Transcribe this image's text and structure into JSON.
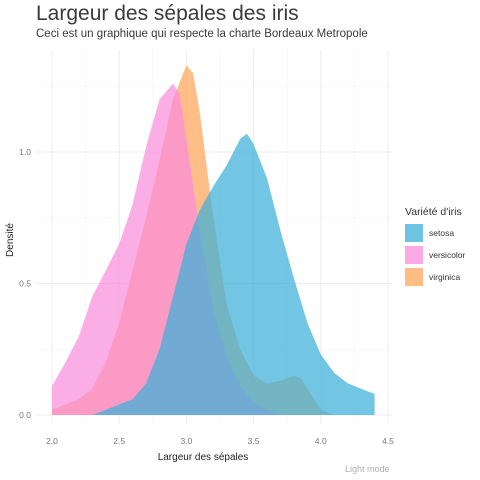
{
  "chart_data": {
    "type": "area",
    "title": "Largeur des sépales des iris",
    "subtitle": "Ceci est un graphique qui respecte la charte Bordeaux Metropole",
    "xlabel": "Largeur des sépales",
    "ylabel": "Densité",
    "caption": "Light mode",
    "xlim": [
      2.0,
      4.5
    ],
    "ylim": [
      0,
      1.3
    ],
    "x_ticks": [
      "2.0",
      "2.5",
      "3.0",
      "3.5",
      "4.0",
      "4.5"
    ],
    "y_ticks": [
      "0.0",
      "0.5",
      "1.0"
    ],
    "grid": true,
    "legend": {
      "title": "Variété d'iris",
      "position": "right"
    },
    "series": [
      {
        "name": "setosa",
        "color": "#3cb0d8",
        "points": [
          [
            2.3,
            0.0
          ],
          [
            2.4,
            0.02
          ],
          [
            2.5,
            0.04
          ],
          [
            2.6,
            0.06
          ],
          [
            2.7,
            0.12
          ],
          [
            2.8,
            0.25
          ],
          [
            2.9,
            0.45
          ],
          [
            3.0,
            0.65
          ],
          [
            3.1,
            0.78
          ],
          [
            3.2,
            0.87
          ],
          [
            3.3,
            0.95
          ],
          [
            3.4,
            1.05
          ],
          [
            3.45,
            1.07
          ],
          [
            3.5,
            1.03
          ],
          [
            3.6,
            0.9
          ],
          [
            3.7,
            0.7
          ],
          [
            3.8,
            0.52
          ],
          [
            3.9,
            0.35
          ],
          [
            4.0,
            0.23
          ],
          [
            4.1,
            0.16
          ],
          [
            4.2,
            0.12
          ],
          [
            4.3,
            0.1
          ],
          [
            4.4,
            0.08
          ],
          [
            4.4,
            0.0
          ]
        ]
      },
      {
        "name": "versicolor",
        "color": "#f98ddc",
        "points": [
          [
            2.0,
            0.0
          ],
          [
            2.0,
            0.11
          ],
          [
            2.1,
            0.2
          ],
          [
            2.2,
            0.3
          ],
          [
            2.3,
            0.45
          ],
          [
            2.4,
            0.55
          ],
          [
            2.5,
            0.65
          ],
          [
            2.6,
            0.8
          ],
          [
            2.7,
            1.02
          ],
          [
            2.8,
            1.2
          ],
          [
            2.9,
            1.26
          ],
          [
            2.95,
            1.22
          ],
          [
            3.0,
            1.05
          ],
          [
            3.1,
            0.7
          ],
          [
            3.2,
            0.4
          ],
          [
            3.3,
            0.22
          ],
          [
            3.4,
            0.11
          ],
          [
            3.5,
            0.05
          ],
          [
            3.6,
            0.02
          ],
          [
            3.7,
            0.0
          ]
        ]
      },
      {
        "name": "virginica",
        "color": "#ffa55a",
        "points": [
          [
            2.0,
            0.0
          ],
          [
            2.0,
            0.02
          ],
          [
            2.1,
            0.04
          ],
          [
            2.2,
            0.06
          ],
          [
            2.3,
            0.1
          ],
          [
            2.4,
            0.2
          ],
          [
            2.5,
            0.35
          ],
          [
            2.6,
            0.55
          ],
          [
            2.7,
            0.75
          ],
          [
            2.8,
            0.97
          ],
          [
            2.9,
            1.2
          ],
          [
            3.0,
            1.33
          ],
          [
            3.05,
            1.3
          ],
          [
            3.1,
            1.15
          ],
          [
            3.2,
            0.75
          ],
          [
            3.3,
            0.42
          ],
          [
            3.4,
            0.25
          ],
          [
            3.5,
            0.15
          ],
          [
            3.6,
            0.12
          ],
          [
            3.7,
            0.13
          ],
          [
            3.8,
            0.15
          ],
          [
            3.85,
            0.14
          ],
          [
            3.9,
            0.1
          ],
          [
            4.0,
            0.02
          ],
          [
            4.1,
            0.0
          ]
        ]
      }
    ]
  }
}
